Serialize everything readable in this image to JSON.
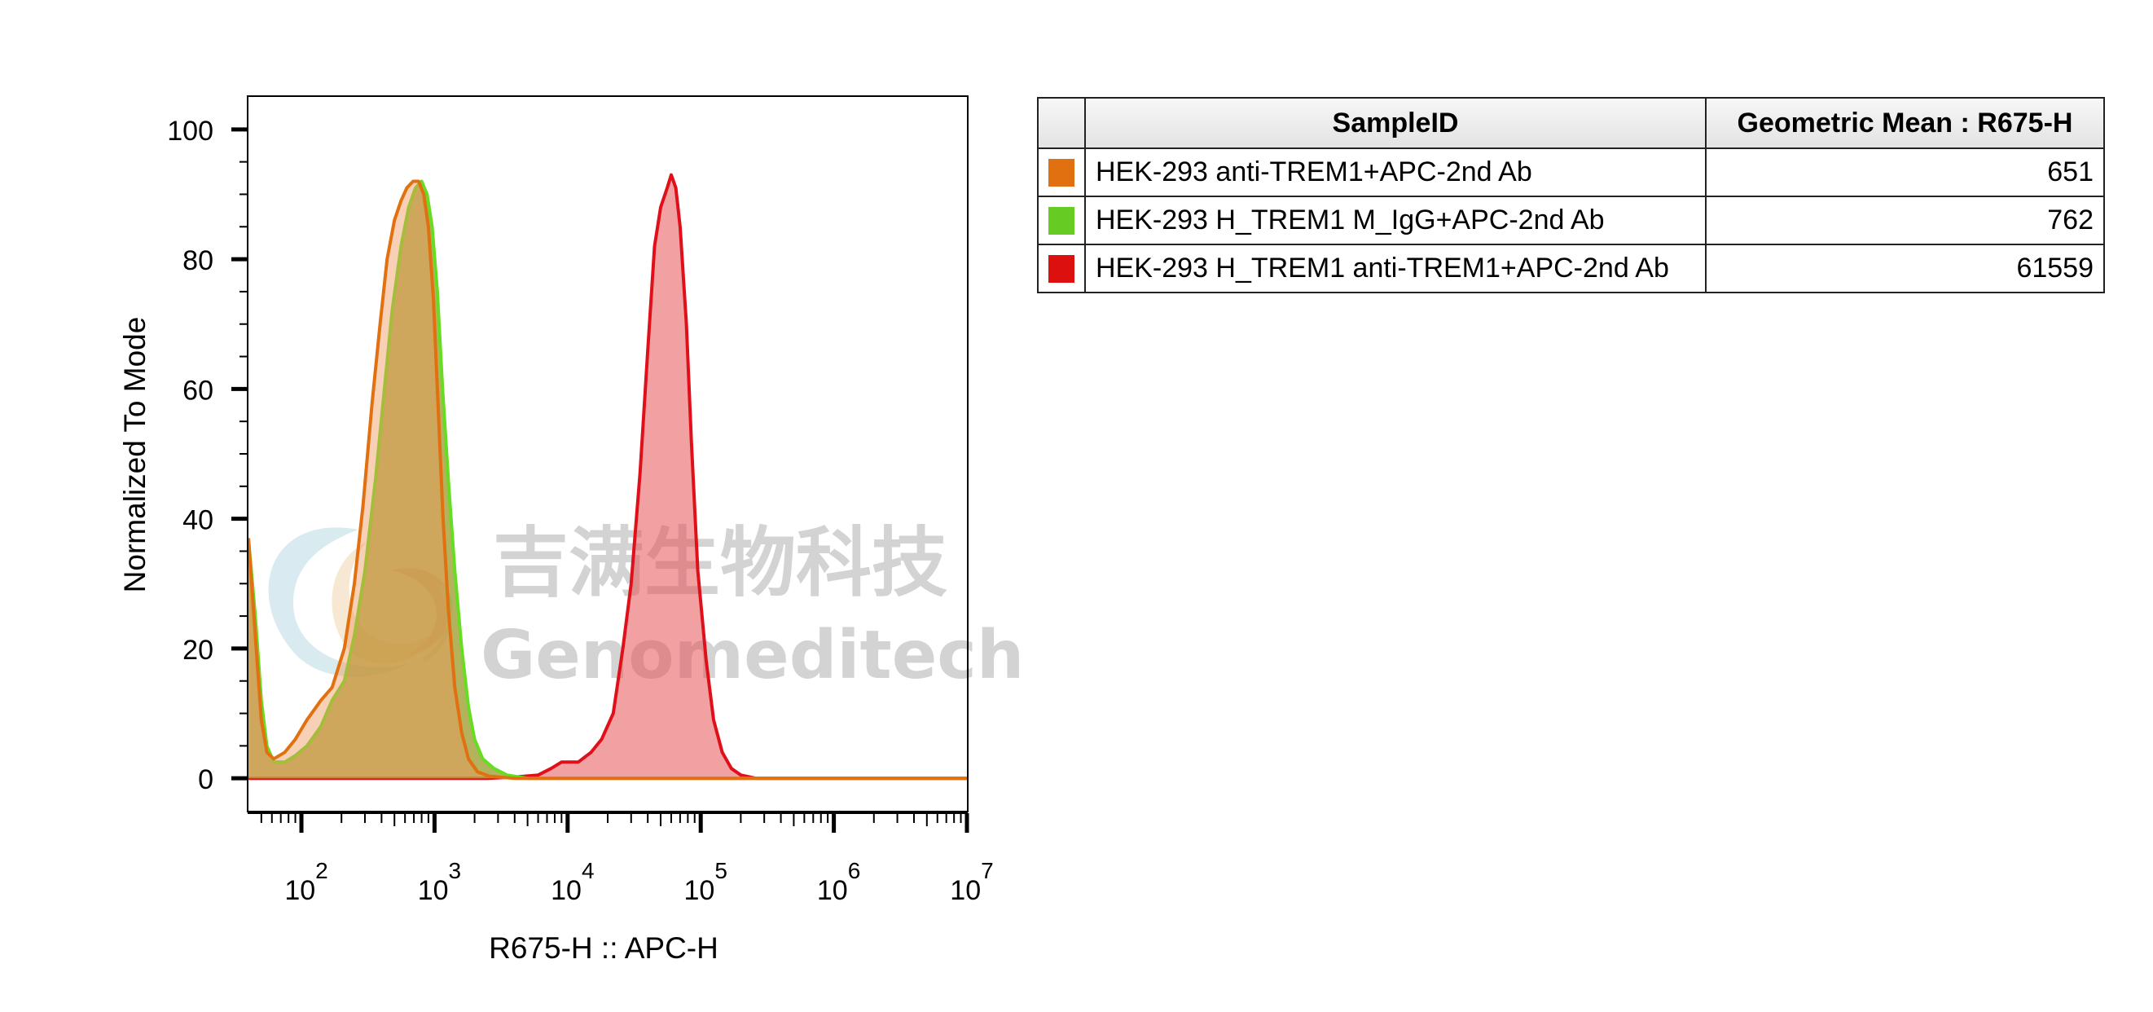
{
  "chart_data": {
    "type": "area",
    "xlabel": "R675-H :: APC-H",
    "ylabel": "Normalized To Mode",
    "xscale": "log",
    "xlim": [
      40,
      10000000
    ],
    "ylim": [
      -5,
      105
    ],
    "yticks": [
      0,
      20,
      40,
      60,
      80,
      100
    ],
    "xticks": [
      {
        "base": "10",
        "exp": "2",
        "value": 100
      },
      {
        "base": "10",
        "exp": "3",
        "value": 1000
      },
      {
        "base": "10",
        "exp": "4",
        "value": 10000
      },
      {
        "base": "10",
        "exp": "5",
        "value": 100000
      },
      {
        "base": "10",
        "exp": "6",
        "value": 1000000
      },
      {
        "base": "10",
        "exp": "7",
        "value": 10000000
      }
    ],
    "grid": false,
    "series": [
      {
        "name": "HEK-293 H_TREM1 anti-TREM1+APC-2nd Ab",
        "color": "#e0101a",
        "fill": "rgba(232,84,88,0.55)",
        "points": [
          [
            40,
            0
          ],
          [
            1000,
            0
          ],
          [
            2500,
            0
          ],
          [
            4000,
            0.2
          ],
          [
            6000,
            0.5
          ],
          [
            7500,
            1.5
          ],
          [
            9000,
            2.5
          ],
          [
            12000,
            2.5
          ],
          [
            15000,
            4
          ],
          [
            18000,
            6
          ],
          [
            22000,
            10
          ],
          [
            26000,
            20
          ],
          [
            30000,
            30
          ],
          [
            35000,
            47
          ],
          [
            40000,
            66
          ],
          [
            45000,
            82
          ],
          [
            50000,
            88
          ],
          [
            56000,
            91
          ],
          [
            60000,
            93
          ],
          [
            65000,
            91
          ],
          [
            70000,
            85
          ],
          [
            78000,
            70
          ],
          [
            85000,
            52
          ],
          [
            95000,
            32
          ],
          [
            110000,
            18
          ],
          [
            125000,
            9
          ],
          [
            145000,
            4
          ],
          [
            170000,
            1.5
          ],
          [
            200000,
            0.5
          ],
          [
            260000,
            0
          ],
          [
            10000000,
            0
          ]
        ]
      },
      {
        "name": "HEK-293 H_TREM1 M_IgG+APC-2nd Ab",
        "color": "#66dd22",
        "fill": "rgba(150,150,30,0.72)",
        "points": [
          [
            40,
            37
          ],
          [
            45,
            25
          ],
          [
            50,
            12
          ],
          [
            55,
            5
          ],
          [
            62,
            2.5
          ],
          [
            75,
            2.5
          ],
          [
            90,
            3.5
          ],
          [
            110,
            5
          ],
          [
            140,
            8
          ],
          [
            170,
            12
          ],
          [
            210,
            15
          ],
          [
            250,
            22
          ],
          [
            300,
            32
          ],
          [
            360,
            46
          ],
          [
            420,
            60
          ],
          [
            480,
            72
          ],
          [
            560,
            82
          ],
          [
            640,
            88
          ],
          [
            720,
            91
          ],
          [
            800,
            92
          ],
          [
            880,
            90
          ],
          [
            960,
            85
          ],
          [
            1050,
            75
          ],
          [
            1150,
            60
          ],
          [
            1280,
            45
          ],
          [
            1420,
            32
          ],
          [
            1600,
            20
          ],
          [
            1800,
            11
          ],
          [
            2000,
            6
          ],
          [
            2300,
            3
          ],
          [
            2800,
            1.5
          ],
          [
            3500,
            0.5
          ],
          [
            5000,
            0
          ],
          [
            10000000,
            0
          ]
        ]
      },
      {
        "name": "HEK-293 anti-TREM1+APC-2nd Ab",
        "color": "#e07010",
        "fill": "rgba(240,150,90,0.45)",
        "points": [
          [
            40,
            37
          ],
          [
            45,
            22
          ],
          [
            50,
            9
          ],
          [
            55,
            4
          ],
          [
            62,
            3
          ],
          [
            75,
            4
          ],
          [
            90,
            6
          ],
          [
            110,
            9
          ],
          [
            140,
            12
          ],
          [
            170,
            14
          ],
          [
            210,
            20
          ],
          [
            250,
            30
          ],
          [
            290,
            42
          ],
          [
            340,
            58
          ],
          [
            390,
            70
          ],
          [
            440,
            80
          ],
          [
            500,
            86
          ],
          [
            560,
            89
          ],
          [
            620,
            91
          ],
          [
            690,
            92
          ],
          [
            760,
            92
          ],
          [
            830,
            90
          ],
          [
            900,
            85
          ],
          [
            980,
            74
          ],
          [
            1060,
            58
          ],
          [
            1160,
            40
          ],
          [
            1270,
            26
          ],
          [
            1420,
            14
          ],
          [
            1600,
            7
          ],
          [
            1800,
            3
          ],
          [
            2100,
            1
          ],
          [
            2600,
            0.3
          ],
          [
            4000,
            0
          ],
          [
            10000000,
            0
          ]
        ]
      }
    ]
  },
  "legend": {
    "headers": {
      "swatch": "",
      "sample": "SampleID",
      "value": "Geometric Mean : R675-H"
    },
    "rows": [
      {
        "color": "#e07010",
        "sample": "HEK-293 anti-TREM1+APC-2nd Ab",
        "value": "651"
      },
      {
        "color": "#66cc22",
        "sample": "HEK-293 H_TREM1 M_IgG+APC-2nd Ab",
        "value": "762"
      },
      {
        "color": "#dd1010",
        "sample": "HEK-293 H_TREM1 anti-TREM1+APC-2nd Ab",
        "value": "61559"
      }
    ]
  },
  "watermark": {
    "cn": "吉满生物科技",
    "en": "Genomeditech"
  }
}
